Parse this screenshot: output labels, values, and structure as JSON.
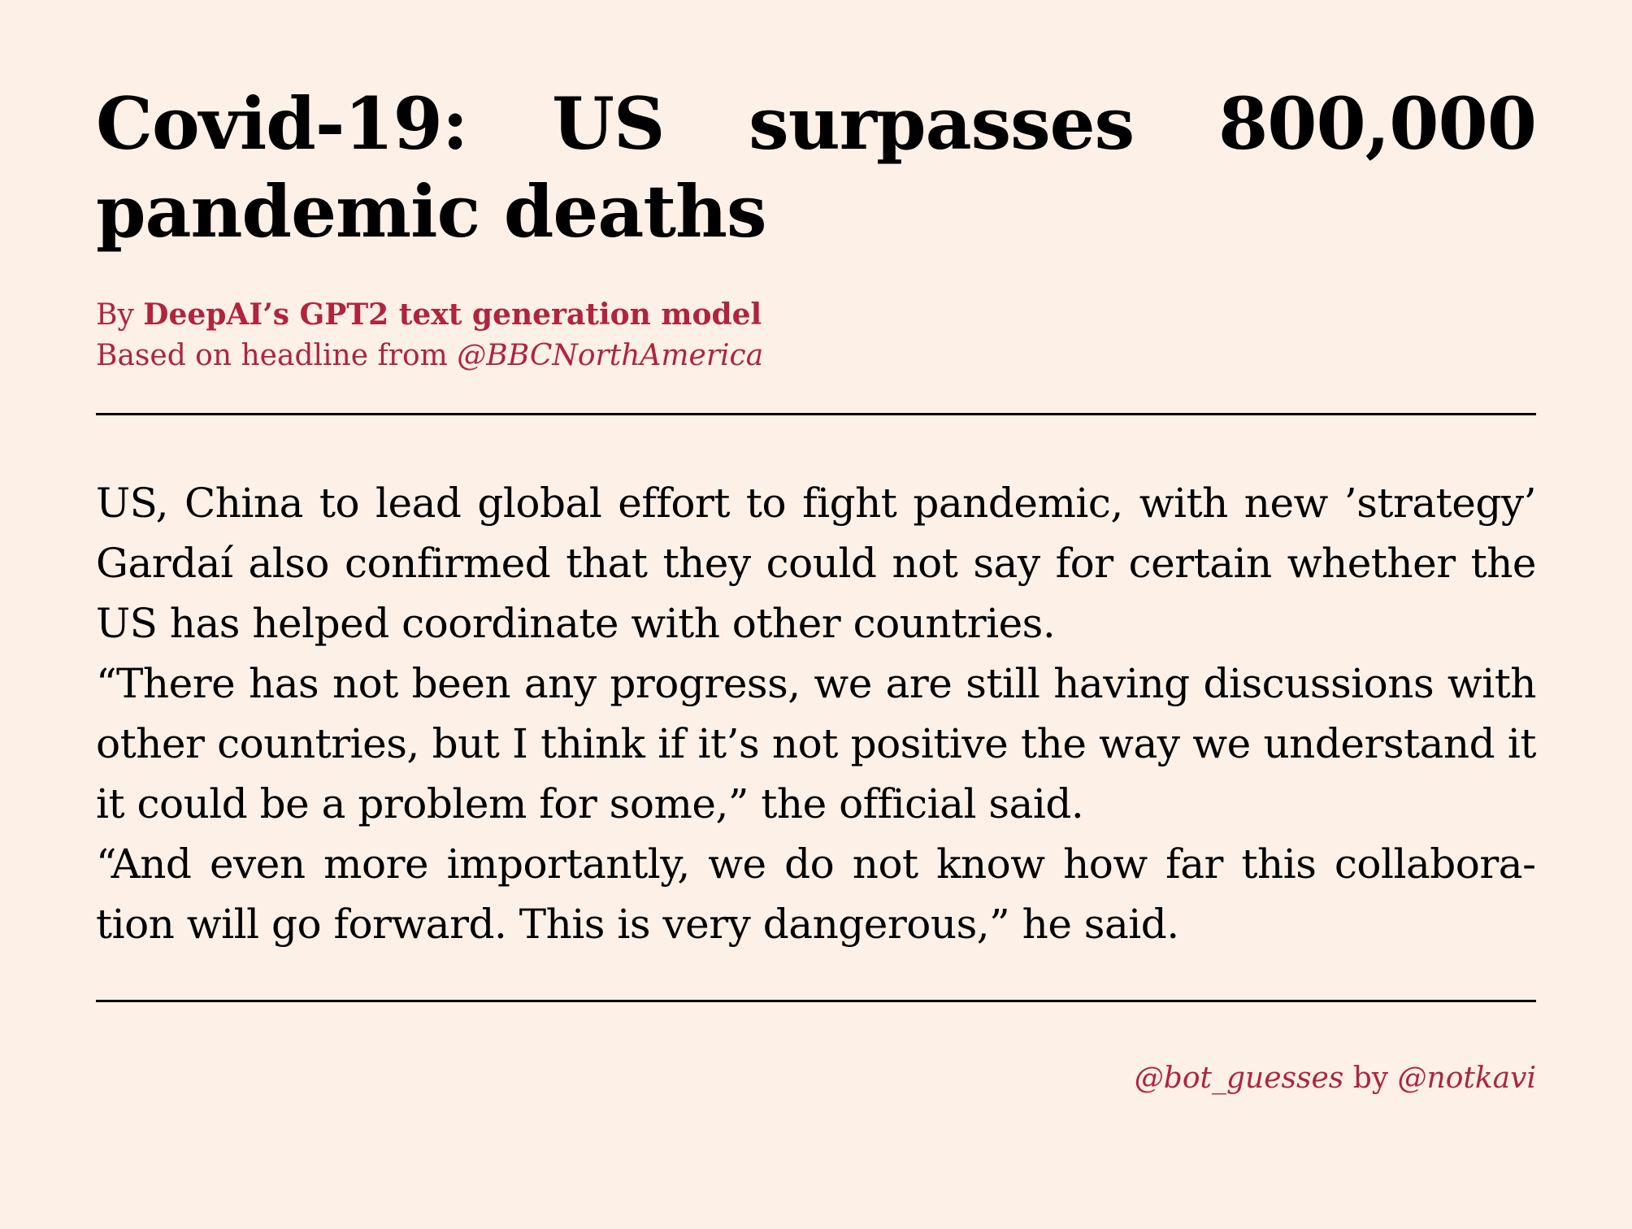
{
  "article": {
    "title": "Covid-19: US surpasses 800,000 pan­demic deaths",
    "byline": {
      "prefix": "By ",
      "author": "DeepAI’s GPT2 text generation model",
      "source_prefix": "Based on headline from ",
      "source_handle": "@BBCNorthAmerica"
    },
    "paragraphs": [
      "US, China to lead global effort to fight pandemic, with new ’strategy’ Gardaí also confirmed that they could not say for certain whether the US has helped coordinate with other countries.",
      "“There has not been any progress, we are still having discussions with other countries, but I think if it’s not positive the way we un­derstand it it could be a problem for some,” the official said.",
      "“And even more importantly, we do not know how far this collabora­tion will go forward. This is very dangerous,” he said."
    ]
  },
  "footer": {
    "bot_handle": "@bot_guesses",
    "by_text": " by ",
    "author_handle": "@notkavi"
  },
  "colors": {
    "background": "#fdf0e7",
    "accent": "#b0243d",
    "text": "#000000"
  }
}
